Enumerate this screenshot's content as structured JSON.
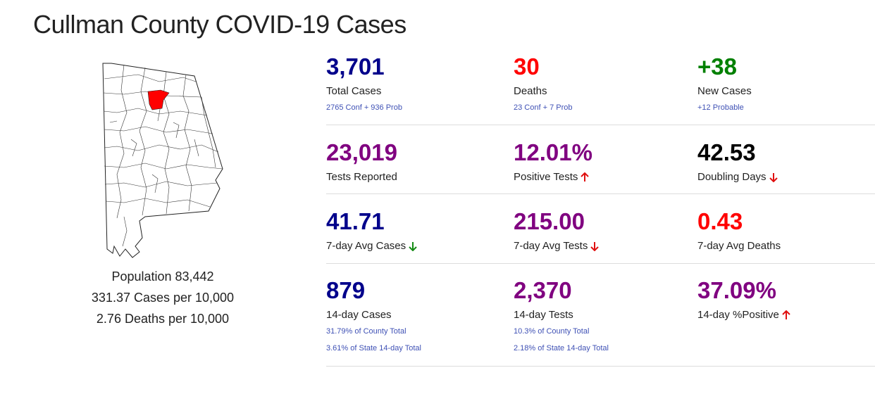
{
  "page": {
    "title": "Cullman County COVID-19 Cases"
  },
  "colors": {
    "navy": "#00008b",
    "red": "#ff0000",
    "green": "#008000",
    "purple": "#800080",
    "black": "#000000",
    "highlight_county": "#ff0000",
    "note_blue": "#3f51b5"
  },
  "map": {
    "state": "Alabama",
    "highlighted_county": "Cullman"
  },
  "population": {
    "population_text": "Population 83,442",
    "cases_per_text": "331.37 Cases per 10,000",
    "deaths_per_text": "2.76 Deaths per 10,000"
  },
  "stats": {
    "total_cases": {
      "value": "3,701",
      "label": "Total Cases",
      "color": "navy",
      "notes": [
        "2765 Conf + 936 Prob"
      ]
    },
    "deaths": {
      "value": "30",
      "label": "Deaths",
      "color": "red",
      "notes": [
        "23 Conf + 7 Prob"
      ]
    },
    "new_cases": {
      "value": "+38",
      "label": "New Cases",
      "color": "green",
      "notes": [
        "+12 Probable"
      ]
    },
    "tests_reported": {
      "value": "23,019",
      "label": "Tests Reported",
      "color": "purple"
    },
    "positive_tests": {
      "value": "12.01%",
      "label": "Positive Tests",
      "color": "purple",
      "trend": "up-red"
    },
    "doubling_days": {
      "value": "42.53",
      "label": "Doubling Days",
      "color": "black",
      "trend": "down-red"
    },
    "avg7_cases": {
      "value": "41.71",
      "label": "7-day Avg Cases",
      "color": "navy",
      "trend": "down-green"
    },
    "avg7_tests": {
      "value": "215.00",
      "label": "7-day Avg Tests",
      "color": "purple",
      "trend": "down-red"
    },
    "avg7_deaths": {
      "value": "0.43",
      "label": "7-day Avg Deaths",
      "color": "red"
    },
    "cases14": {
      "value": "879",
      "label": "14-day Cases",
      "color": "navy",
      "notes": [
        "31.79% of County Total",
        "3.61% of State 14-day Total"
      ]
    },
    "tests14": {
      "value": "2,370",
      "label": "14-day Tests",
      "color": "purple",
      "notes": [
        "10.3% of County Total",
        "2.18% of State 14-day Total"
      ]
    },
    "positive14": {
      "value": "37.09%",
      "label": "14-day %Positive",
      "color": "purple",
      "trend": "up-red"
    }
  }
}
